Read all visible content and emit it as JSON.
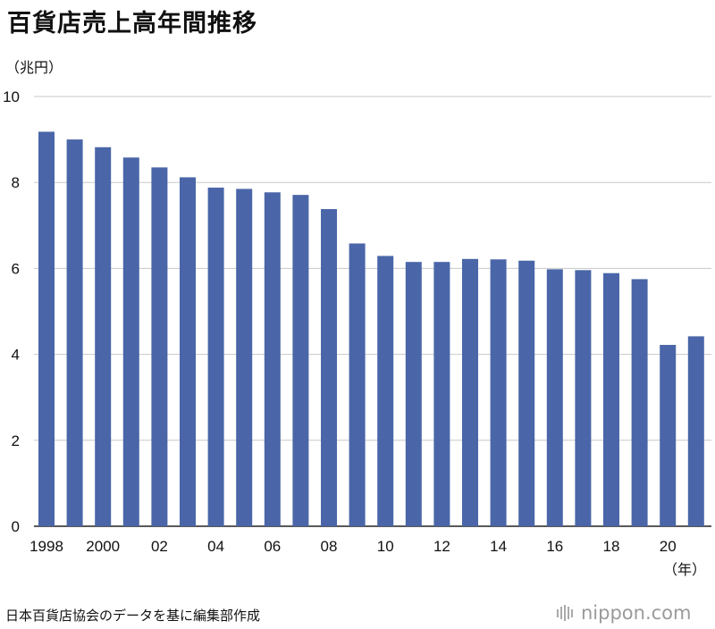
{
  "title": "百貨店売上高年間推移",
  "chart_data": {
    "type": "bar",
    "y_unit_label": "（兆円）",
    "x_unit_label": "（年）",
    "categories": [
      "1998",
      "1999",
      "2000",
      "2001",
      "2002",
      "2003",
      "2004",
      "2005",
      "2006",
      "2007",
      "2008",
      "2009",
      "2010",
      "2011",
      "2012",
      "2013",
      "2014",
      "2015",
      "2016",
      "2017",
      "2018",
      "2019",
      "2020",
      "2021"
    ],
    "x_tick_labels": [
      "1998",
      "",
      "2000",
      "",
      "02",
      "",
      "04",
      "",
      "06",
      "",
      "08",
      "",
      "10",
      "",
      "12",
      "",
      "14",
      "",
      "16",
      "",
      "18",
      "",
      "20",
      ""
    ],
    "values": [
      9.18,
      9.0,
      8.82,
      8.58,
      8.35,
      8.12,
      7.88,
      7.85,
      7.77,
      7.71,
      7.38,
      6.58,
      6.29,
      6.15,
      6.15,
      6.22,
      6.21,
      6.18,
      5.98,
      5.96,
      5.89,
      5.75,
      4.22,
      4.42
    ],
    "y_ticks": [
      0,
      2,
      4,
      6,
      8,
      10
    ],
    "ylim": [
      0,
      10
    ],
    "grid": true,
    "bar_color": "#4a66a8"
  },
  "source": "日本百貨店協会のデータを基に編集部作成",
  "logo": {
    "icon": "nippon-logo-bars-icon",
    "text": "nippon.com"
  }
}
